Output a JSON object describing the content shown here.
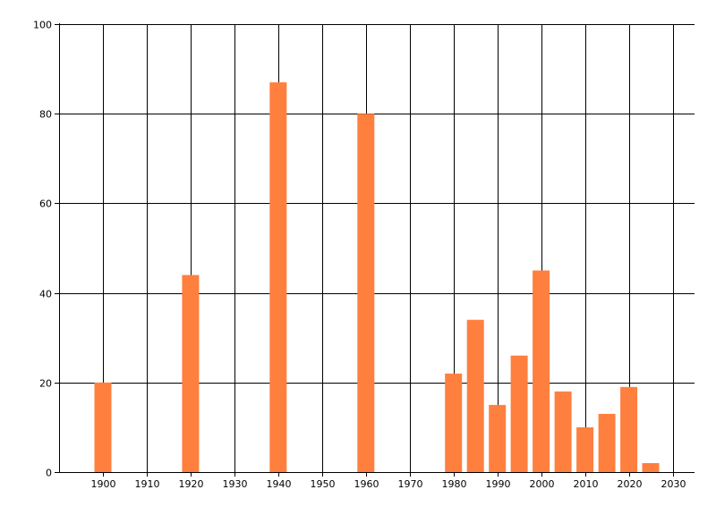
{
  "chart_data": {
    "type": "bar",
    "x": [
      1900,
      1920,
      1940,
      1960,
      1980,
      1985,
      1990,
      1995,
      2000,
      2005,
      2010,
      2015,
      2020,
      2025
    ],
    "values": [
      20,
      44,
      87,
      80,
      22,
      34,
      15,
      26,
      45,
      18,
      10,
      13,
      19,
      2
    ],
    "xlim": [
      1890,
      2035
    ],
    "ylim": [
      0,
      100
    ],
    "x_ticks": [
      1900,
      1910,
      1920,
      1930,
      1940,
      1950,
      1960,
      1970,
      1980,
      1990,
      2000,
      2010,
      2020,
      2030
    ],
    "y_ticks": [
      0,
      20,
      40,
      60,
      80,
      100
    ],
    "grid": true,
    "bar_color": "#FF7F3F",
    "title": "",
    "xlabel": "",
    "ylabel": ""
  }
}
